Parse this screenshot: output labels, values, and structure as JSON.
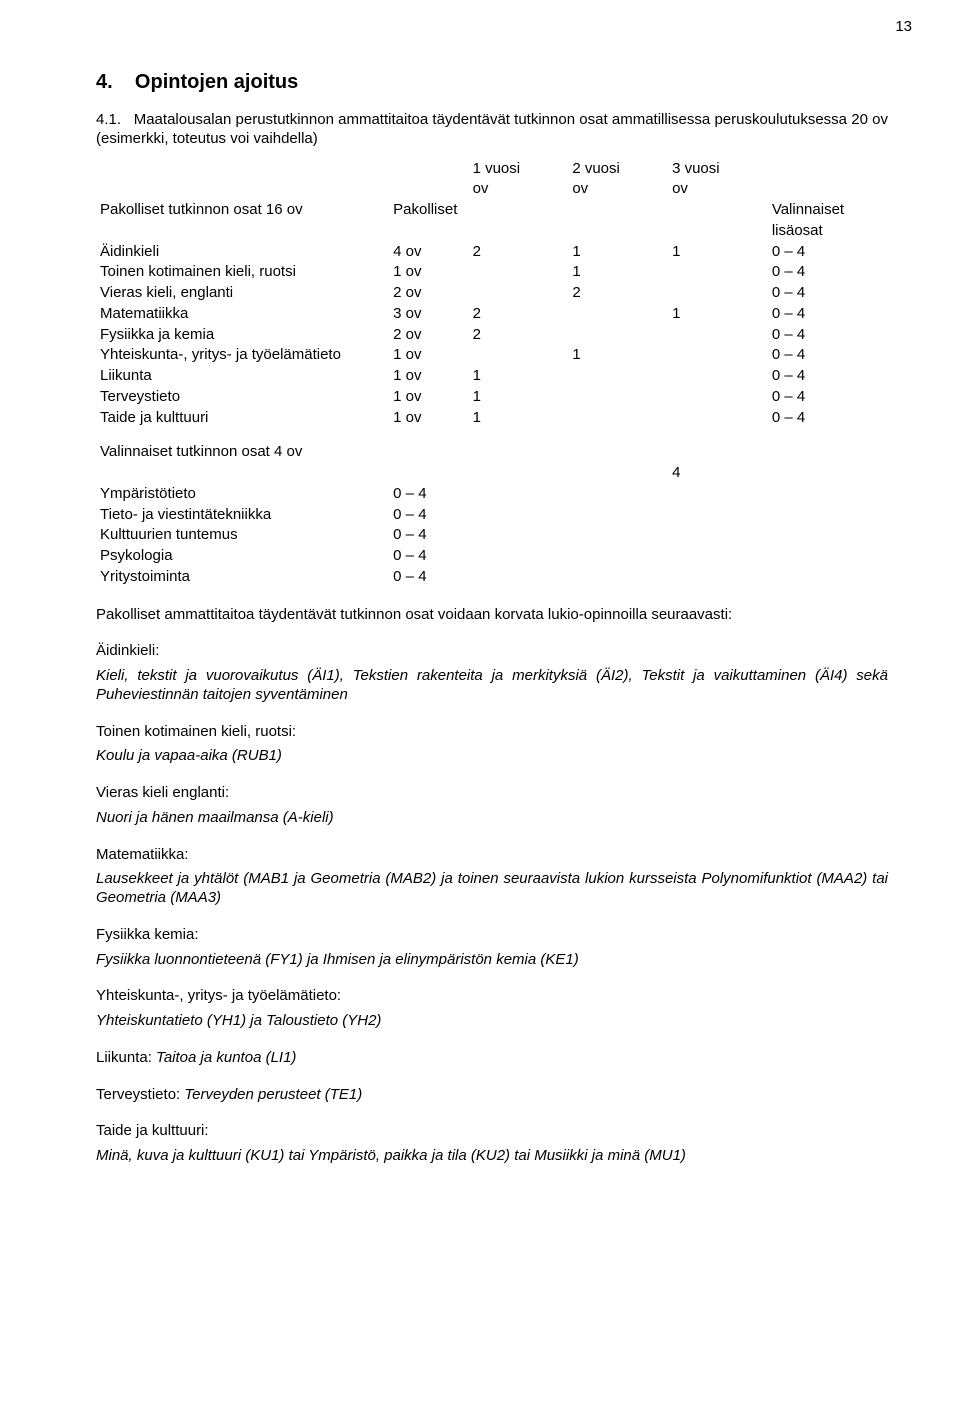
{
  "page_number": "13",
  "section_number": "4.",
  "section_title": "Opintojen ajoitus",
  "intro_number": "4.1.",
  "intro_text": "Maatalousalan perustutkinnon ammattitaitoa täydentävät tutkinnon osat ammatillisessa peruskoulutuksessa 20 ov (esimerkki, toteutus voi vaihdella)",
  "table": {
    "header_years": [
      "1 vuosi",
      "2 vuosi",
      "3 vuosi"
    ],
    "header_years_sub": [
      "ov",
      "ov",
      "ov"
    ],
    "left_header_1": "Pakolliset tutkinnon osat 16 ov",
    "left_header_2": "Pakolliset",
    "right_header_1": "Valinnaiset",
    "right_header_2": "lisäosat",
    "rows": [
      {
        "name": "Äidinkieli",
        "ov": "4 ov",
        "y1": "2",
        "y2": "1",
        "y3": "1",
        "lisa": "0 – 4"
      },
      {
        "name": "Toinen kotimainen kieli, ruotsi",
        "ov": "1 ov",
        "y1": "",
        "y2": "1",
        "y3": "",
        "lisa": "0 – 4"
      },
      {
        "name": "Vieras kieli, englanti",
        "ov": "2 ov",
        "y1": "",
        "y2": "2",
        "y3": "",
        "lisa": "0 – 4"
      },
      {
        "name": "Matematiikka",
        "ov": "3 ov",
        "y1": "2",
        "y2": "",
        "y3": "1",
        "lisa": "0 – 4"
      },
      {
        "name": "Fysiikka ja kemia",
        "ov": "2 ov",
        "y1": "2",
        "y2": "",
        "y3": "",
        "lisa": "0 – 4"
      },
      {
        "name": "Yhteiskunta-, yritys- ja työelämätieto",
        "ov": "1 ov",
        "y1": "",
        "y2": "1",
        "y3": "",
        "lisa": "0 – 4"
      },
      {
        "name": "Liikunta",
        "ov": "1 ov",
        "y1": "1",
        "y2": "",
        "y3": "",
        "lisa": "0 – 4"
      },
      {
        "name": "Terveystieto",
        "ov": "1 ov",
        "y1": "1",
        "y2": "",
        "y3": "",
        "lisa": "0 – 4"
      },
      {
        "name": "Taide ja kulttuuri",
        "ov": "1 ov",
        "y1": "1",
        "y2": "",
        "y3": "",
        "lisa": "0 – 4"
      }
    ],
    "optional_header": "Valinnaiset tutkinnon osat 4 ov",
    "optional_total": "4",
    "optional_rows": [
      {
        "name": "Ympäristötieto",
        "val": "0 – 4"
      },
      {
        "name": "Tieto- ja viestintätekniikka",
        "val": "0 – 4"
      },
      {
        "name": "Kulttuurien tuntemus",
        "val": "0 – 4"
      },
      {
        "name": "Psykologia",
        "val": "0 – 4"
      },
      {
        "name": "Yritystoiminta",
        "val": "0 – 4"
      }
    ]
  },
  "lukio_intro": "Pakolliset ammattitaitoa täydentävät tutkinnon osat voidaan korvata lukio-opinnoilla seuraavasti:",
  "replacements": [
    {
      "title": "Äidinkieli:",
      "body": "Kieli, tekstit ja vuorovaikutus (ÄI1), Tekstien rakenteita ja merkityksiä (ÄI2), Tekstit ja vaikuttaminen (ÄI4) sekä Puheviestinnän taitojen syventäminen"
    },
    {
      "title": "Toinen kotimainen kieli, ruotsi:",
      "body": "Koulu ja vapaa-aika (RUB1)"
    },
    {
      "title": "Vieras kieli englanti:",
      "body": "Nuori ja hänen maailmansa (A-kieli)"
    },
    {
      "title": "Matematiikka:",
      "body": "Lausekkeet ja yhtälöt (MAB1 ja Geometria (MAB2) ja toinen seuraavista lukion kursseista Polynomifunktiot (MAA2) tai Geometria (MAA3)"
    },
    {
      "title": "Fysiikka kemia:",
      "body": "Fysiikka luonnontieteenä (FY1) ja Ihmisen ja elinympäristön kemia (KE1)"
    },
    {
      "title": "Yhteiskunta-, yritys- ja työelämätieto:",
      "body": "Yhteiskuntatieto (YH1) ja Taloustieto (YH2)"
    },
    {
      "title_inline": "Liikunta:",
      "body_inline": "Taitoa ja kuntoa (LI1)"
    },
    {
      "title_inline": "Terveystieto:",
      "body_inline": "Terveyden perusteet (TE1)"
    },
    {
      "title": "Taide ja kulttuuri:",
      "body": "Minä, kuva ja kulttuuri (KU1) tai Ympäristö, paikka ja tila (KU2) tai Musiikki ja minä (MU1)"
    }
  ]
}
